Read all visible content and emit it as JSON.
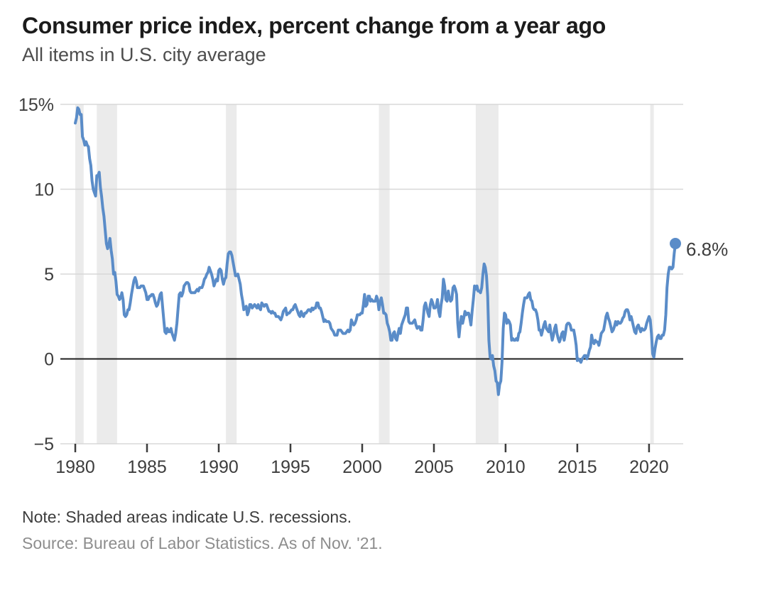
{
  "header": {
    "title": "Consumer price index, percent change from a year ago",
    "subtitle": "All items in U.S. city average"
  },
  "footer": {
    "note": "Note: Shaded areas indicate U.S. recessions.",
    "source": "Source: Bureau of Labor Statistics. As of Nov. '21."
  },
  "chart_data": {
    "type": "line",
    "title": "Consumer price index, percent change from a year ago",
    "subtitle": "All items in U.S. city average",
    "series_name": "CPI all items, percent change from a year ago",
    "frequency": "monthly",
    "x_start": {
      "year": 1980,
      "month": 1
    },
    "x_end": {
      "year": 2021,
      "month": 11
    },
    "end_label": "6.8%",
    "last_value": 6.8,
    "ylim": [
      -5,
      15
    ],
    "xlim": [
      1978.96,
      2022.38
    ],
    "grid": true,
    "y_ticks": [
      {
        "value": 15,
        "label": "15%"
      },
      {
        "value": 10,
        "label": "10"
      },
      {
        "value": 5,
        "label": "5"
      },
      {
        "value": 0,
        "label": "0"
      },
      {
        "value": -5,
        "label": "−5"
      }
    ],
    "x_ticks": [
      {
        "value": 1980,
        "label": "1980"
      },
      {
        "value": 1985,
        "label": "1985"
      },
      {
        "value": 1990,
        "label": "1990"
      },
      {
        "value": 1995,
        "label": "1995"
      },
      {
        "value": 2000,
        "label": "2000"
      },
      {
        "value": 2005,
        "label": "2005"
      },
      {
        "value": 2010,
        "label": "2010"
      },
      {
        "value": 2015,
        "label": "2015"
      },
      {
        "value": 2020,
        "label": "2020"
      }
    ],
    "recessions": [
      {
        "start": 1980.0,
        "end": 1980.583
      },
      {
        "start": 1981.5,
        "end": 1982.917
      },
      {
        "start": 1990.5,
        "end": 1991.25
      },
      {
        "start": 2001.167,
        "end": 2001.917
      },
      {
        "start": 2007.917,
        "end": 2009.5
      },
      {
        "start": 2020.083,
        "end": 2020.333
      }
    ],
    "colors": {
      "line": "#5a8cc8",
      "recession_band": "#ebebeb",
      "grid": "#d8d8d8",
      "zero_line": "#1f1f1f",
      "tick": "#3d3d3d",
      "label": "#3d3d3d"
    },
    "values": [
      13.9,
      14.2,
      14.8,
      14.7,
      14.4,
      14.4,
      13.1,
      12.9,
      12.6,
      12.8,
      12.6,
      12.5,
      11.8,
      11.4,
      10.5,
      10.0,
      9.8,
      9.6,
      10.8,
      10.8,
      11.0,
      10.1,
      9.6,
      8.9,
      8.4,
      7.6,
      6.8,
      6.5,
      6.7,
      7.1,
      6.4,
      5.9,
      5.0,
      5.1,
      4.6,
      3.8,
      3.7,
      3.5,
      3.6,
      3.9,
      3.5,
      2.6,
      2.5,
      2.6,
      2.9,
      2.9,
      3.3,
      3.8,
      4.2,
      4.6,
      4.8,
      4.6,
      4.2,
      4.2,
      4.2,
      4.3,
      4.3,
      4.3,
      4.1,
      3.9,
      3.5,
      3.5,
      3.7,
      3.7,
      3.8,
      3.8,
      3.6,
      3.3,
      3.1,
      3.2,
      3.5,
      3.8,
      3.9,
      3.1,
      2.3,
      1.6,
      1.5,
      1.8,
      1.6,
      1.6,
      1.8,
      1.5,
      1.3,
      1.1,
      1.5,
      2.1,
      3.0,
      3.8,
      3.9,
      3.7,
      3.9,
      4.3,
      4.4,
      4.5,
      4.5,
      4.4,
      4.0,
      3.9,
      3.9,
      3.9,
      3.9,
      4.0,
      4.1,
      4.0,
      4.2,
      4.2,
      4.2,
      4.4,
      4.7,
      4.8,
      5.0,
      5.1,
      5.4,
      5.2,
      5.0,
      4.7,
      4.3,
      4.5,
      4.7,
      4.6,
      5.2,
      5.3,
      5.2,
      4.7,
      4.4,
      4.7,
      4.8,
      5.6,
      6.2,
      6.3,
      6.3,
      6.1,
      5.7,
      5.3,
      4.9,
      4.9,
      5.0,
      4.7,
      4.4,
      3.8,
      3.4,
      2.9,
      3.0,
      3.1,
      2.6,
      2.8,
      3.2,
      3.2,
      3.0,
      3.1,
      3.2,
      3.1,
      3.0,
      3.2,
      3.0,
      2.9,
      3.3,
      3.2,
      3.1,
      3.2,
      3.2,
      3.0,
      2.8,
      2.8,
      2.7,
      2.8,
      2.7,
      2.7,
      2.5,
      2.5,
      2.5,
      2.4,
      2.3,
      2.5,
      2.8,
      2.9,
      3.0,
      2.6,
      2.7,
      2.7,
      2.8,
      2.9,
      2.9,
      3.1,
      3.2,
      3.0,
      2.8,
      2.6,
      2.5,
      2.8,
      2.6,
      2.5,
      2.7,
      2.7,
      2.8,
      2.9,
      2.9,
      2.8,
      3.0,
      2.9,
      3.0,
      3.0,
      3.3,
      3.3,
      3.0,
      3.0,
      2.8,
      2.5,
      2.2,
      2.3,
      2.2,
      2.2,
      2.2,
      2.1,
      1.8,
      1.7,
      1.6,
      1.4,
      1.4,
      1.4,
      1.7,
      1.7,
      1.7,
      1.6,
      1.5,
      1.5,
      1.5,
      1.6,
      1.7,
      1.6,
      1.7,
      2.3,
      2.1,
      2.0,
      2.1,
      2.3,
      2.6,
      2.6,
      2.6,
      2.7,
      2.7,
      3.2,
      3.8,
      3.1,
      3.2,
      3.7,
      3.7,
      3.4,
      3.5,
      3.4,
      3.4,
      3.4,
      3.7,
      3.5,
      2.9,
      3.3,
      3.6,
      3.2,
      2.7,
      2.7,
      2.6,
      2.1,
      1.9,
      1.6,
      1.1,
      1.1,
      1.5,
      1.6,
      1.2,
      1.1,
      1.5,
      1.8,
      1.5,
      2.0,
      2.2,
      2.4,
      2.6,
      3.0,
      3.0,
      2.2,
      2.1,
      2.1,
      2.1,
      2.2,
      2.3,
      2.0,
      1.8,
      1.9,
      1.9,
      1.7,
      1.7,
      2.3,
      3.1,
      3.3,
      3.0,
      2.7,
      2.5,
      3.2,
      3.5,
      3.3,
      3.0,
      3.0,
      3.1,
      3.5,
      2.8,
      2.5,
      3.2,
      3.6,
      4.7,
      4.3,
      3.5,
      3.4,
      4.0,
      3.6,
      3.4,
      3.5,
      4.2,
      4.3,
      4.1,
      3.8,
      2.1,
      1.3,
      2.0,
      2.5,
      2.1,
      2.4,
      2.8,
      2.6,
      2.7,
      2.7,
      2.4,
      2.0,
      2.8,
      3.5,
      4.3,
      4.1,
      4.3,
      4.0,
      4.0,
      3.9,
      4.2,
      5.0,
      5.6,
      5.4,
      4.9,
      3.7,
      1.1,
      0.1,
      0.0,
      0.2,
      -0.4,
      -0.7,
      -1.3,
      -1.4,
      -2.1,
      -1.5,
      -1.3,
      -0.2,
      1.8,
      2.7,
      2.6,
      2.1,
      2.3,
      2.2,
      2.0,
      1.1,
      1.2,
      1.1,
      1.1,
      1.2,
      1.1,
      1.5,
      1.6,
      2.1,
      2.7,
      3.2,
      3.6,
      3.6,
      3.6,
      3.8,
      3.9,
      3.5,
      3.4,
      3.0,
      2.9,
      2.9,
      2.7,
      2.3,
      1.7,
      1.7,
      1.4,
      1.7,
      2.0,
      2.2,
      1.8,
      1.7,
      1.6,
      2.0,
      1.5,
      1.1,
      1.4,
      1.8,
      2.0,
      1.5,
      1.2,
      1.0,
      1.2,
      1.5,
      1.6,
      1.1,
      1.5,
      2.0,
      2.1,
      2.1,
      2.0,
      1.7,
      1.7,
      1.7,
      1.3,
      0.8,
      -0.1,
      0.0,
      -0.1,
      -0.2,
      0.0,
      0.1,
      0.2,
      0.2,
      0.0,
      0.2,
      0.5,
      0.7,
      1.4,
      1.0,
      0.9,
      1.1,
      1.0,
      1.0,
      0.8,
      1.1,
      1.5,
      1.6,
      1.7,
      2.1,
      2.5,
      2.7,
      2.4,
      2.2,
      1.9,
      1.6,
      1.7,
      1.9,
      2.2,
      2.0,
      2.2,
      2.1,
      2.1,
      2.2,
      2.4,
      2.5,
      2.8,
      2.9,
      2.9,
      2.7,
      2.3,
      2.5,
      2.2,
      1.9,
      1.6,
      1.5,
      1.9,
      2.0,
      1.8,
      1.6,
      1.8,
      1.7,
      1.7,
      1.8,
      2.1,
      2.3,
      2.5,
      2.3,
      1.5,
      0.3,
      0.1,
      0.6,
      1.0,
      1.3,
      1.4,
      1.2,
      1.2,
      1.4,
      1.4,
      1.7,
      2.6,
      4.2,
      5.0,
      5.4,
      5.4,
      5.3,
      5.4,
      6.2,
      6.8
    ]
  }
}
